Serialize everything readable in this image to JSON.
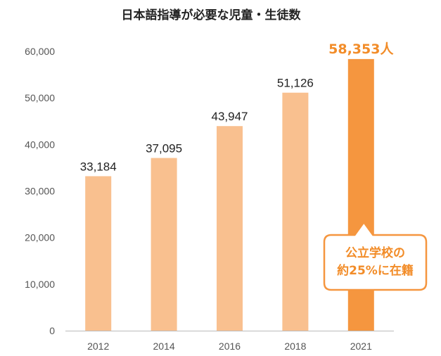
{
  "colors": {
    "bar": "#f9c08f",
    "highlight": "#f5963f",
    "highlight_text": "#f28c28",
    "axis": "#bbbbbb",
    "text": "#222222",
    "tick_text": "#555555"
  },
  "chart_data": {
    "type": "bar",
    "title": "日本語指導が必要な児童・生徒数",
    "xlabel": "",
    "ylabel": "",
    "categories": [
      "2012",
      "2014",
      "2016",
      "2018",
      "2021"
    ],
    "values": [
      33184,
      37095,
      43947,
      51126,
      58353
    ],
    "data_labels": [
      "33,184",
      "37,095",
      "43,947",
      "51,126",
      "58,353人"
    ],
    "highlight_index": 4,
    "ylim": [
      0,
      60000
    ],
    "yticks": [
      0,
      10000,
      20000,
      30000,
      40000,
      50000,
      60000
    ],
    "ytick_labels": [
      "0",
      "10,000",
      "20,000",
      "30,000",
      "40,000",
      "50,000",
      "60,000"
    ],
    "grid": false,
    "legend": "none",
    "callout": [
      "公立学校の",
      "約25%に在籍"
    ]
  }
}
